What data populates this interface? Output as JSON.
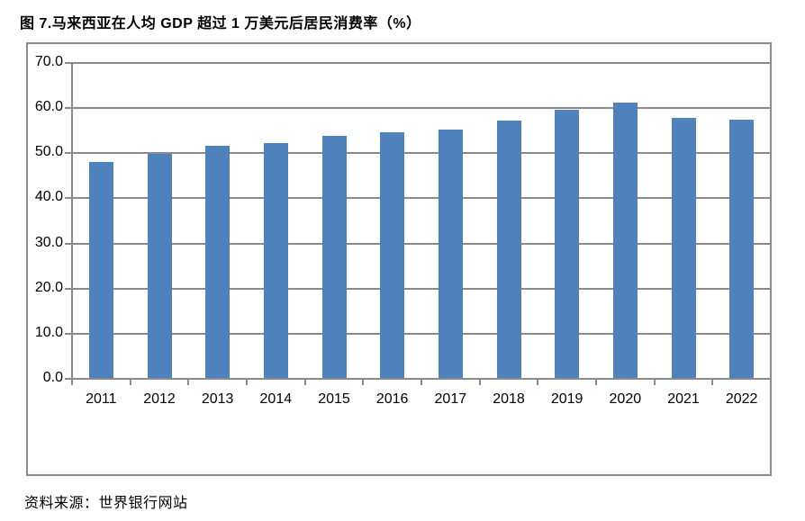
{
  "title": "图 7.马来西亚在人均 GDP 超过 1 万美元后居民消费率（%）",
  "source": "资料来源：世界银行网站",
  "colors": {
    "bar": "#4f81bd",
    "axis": "#8a8a8a",
    "border": "#8c8c8c",
    "text": "#000000",
    "background": "#ffffff"
  },
  "chart_data": {
    "type": "bar",
    "title": "图 7.马来西亚在人均 GDP 超过 1 万美元后居民消费率（%）",
    "categories": [
      "2011",
      "2012",
      "2013",
      "2014",
      "2015",
      "2016",
      "2017",
      "2018",
      "2019",
      "2020",
      "2021",
      "2022"
    ],
    "values": [
      48.0,
      49.9,
      51.7,
      52.3,
      53.9,
      54.7,
      55.3,
      57.3,
      59.6,
      61.2,
      57.9,
      57.5
    ],
    "xlabel": "",
    "ylabel": "",
    "ylim": [
      0,
      70
    ],
    "ytick_step": 10,
    "ytick_labels": [
      "0.0",
      "10.0",
      "20.0",
      "30.0",
      "40.0",
      "50.0",
      "60.0",
      "70.0"
    ],
    "grid": "horizontal",
    "legend_position": "none",
    "source": "资料来源：世界银行网站"
  }
}
